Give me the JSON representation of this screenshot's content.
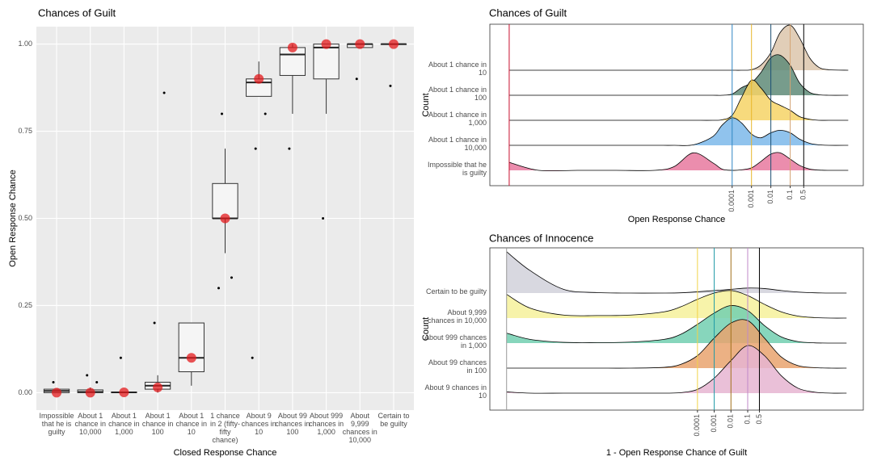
{
  "chart_data": [
    {
      "type": "box",
      "title": "Chances of Guilt",
      "x_label": "Closed Response Chance",
      "y_label": "Open Response Chance",
      "categories": [
        "Impossible that he is guilty",
        "About 1 chance in 10,000",
        "About 1 chance in 1,000",
        "About 1 chance in 100",
        "About 1 chance in 10",
        "1 chance in 2 (fifty-fifty chance)",
        "About 9 chances in 10",
        "About 99 chances in 100",
        "About 999 chances in 1,000",
        "About 9,999 chances in 10,000",
        "Certain to be guilty"
      ],
      "boxes": [
        {
          "min": 0,
          "q1": 0,
          "median": 0.005,
          "q3": 0.01,
          "max": 0.01,
          "outliers": [
            0.03
          ]
        },
        {
          "min": 0,
          "q1": 0,
          "median": 0.002,
          "q3": 0.008,
          "max": 0.015,
          "outliers": [
            0.05,
            0.03
          ]
        },
        {
          "min": 0,
          "q1": 0,
          "median": 0.001,
          "q3": 0.002,
          "max": 0.003,
          "outliers": [
            0.1
          ]
        },
        {
          "min": 0,
          "q1": 0.01,
          "median": 0.02,
          "q3": 0.03,
          "max": 0.05,
          "outliers": [
            0.2,
            0.86
          ]
        },
        {
          "min": 0.02,
          "q1": 0.06,
          "median": 0.1,
          "q3": 0.2,
          "max": 0.2,
          "outliers": []
        },
        {
          "min": 0.4,
          "q1": 0.5,
          "median": 0.5,
          "q3": 0.6,
          "max": 0.7,
          "outliers": [
            0.8,
            0.33,
            0.3
          ]
        },
        {
          "min": 0.85,
          "q1": 0.85,
          "median": 0.89,
          "q3": 0.9,
          "max": 0.95,
          "outliers": [
            0.7,
            0.8,
            0.1
          ]
        },
        {
          "min": 0.8,
          "q1": 0.91,
          "median": 0.97,
          "q3": 0.99,
          "max": 1,
          "outliers": [
            0.7
          ]
        },
        {
          "min": 0.8,
          "q1": 0.9,
          "median": 0.99,
          "q3": 1,
          "max": 1,
          "outliers": [
            0.5
          ]
        },
        {
          "min": 0.99,
          "q1": 0.99,
          "median": 1,
          "q3": 1,
          "max": 1,
          "outliers": [
            0.9
          ]
        },
        {
          "min": 1,
          "q1": 1,
          "median": 1,
          "q3": 1,
          "max": 1,
          "outliers": [
            0.88
          ]
        }
      ],
      "means": [
        0,
        0,
        0.001,
        0.015,
        0.1,
        0.5,
        0.9,
        0.99,
        1,
        1,
        1
      ],
      "mean_color": "#e31a1c",
      "ylim": [
        -0.05,
        1.05
      ],
      "yticks": [
        {
          "value": 0,
          "label": "0.00"
        },
        {
          "value": 0.25,
          "label": "0.25"
        },
        {
          "value": 0.5,
          "label": "0.50"
        },
        {
          "value": 0.75,
          "label": "0.75"
        },
        {
          "value": 1,
          "label": "1.00"
        }
      ],
      "grid": true
    },
    {
      "type": "ridgeline",
      "title": "Chances of Guilt",
      "x_label": "Open Response Chance",
      "y_label": "Count",
      "log_x": true,
      "x": [
        3e-16,
        1e-14,
        1e-12,
        1e-10,
        1e-08,
        1e-07,
        1e-06,
        1e-05,
        3e-05,
        0.0001,
        0.0003,
        0.001,
        0.003,
        0.01,
        0.03,
        0.1,
        0.3,
        1,
        3,
        10,
        100
      ],
      "series": [
        {
          "name": "Impossible that he is guilty",
          "color": "#e8799f",
          "values": [
            0.32,
            0,
            0,
            0,
            0,
            0.15,
            0.7,
            0.3,
            0.05,
            0,
            0.02,
            0.1,
            0.35,
            0.65,
            0.7,
            0.45,
            0.2,
            0.05,
            0.01,
            0,
            0
          ]
        },
        {
          "name": "About 1 chance in 10,000",
          "color": "#7db8ea",
          "values": [
            0,
            0,
            0,
            0,
            0,
            0,
            0.02,
            0.35,
            0.8,
            1.1,
            0.9,
            0.45,
            0.3,
            0.5,
            0.6,
            0.5,
            0.25,
            0.08,
            0.02,
            0,
            0
          ]
        },
        {
          "name": "About 1 chance in 1,000",
          "color": "#f6d466",
          "values": [
            0,
            0,
            0,
            0,
            0,
            0,
            0,
            0,
            0.02,
            0.2,
            0.9,
            1.6,
            1.3,
            0.8,
            0.6,
            0.4,
            0.15,
            0.04,
            0,
            0,
            0
          ]
        },
        {
          "name": "About 1 chance in 100",
          "color": "#5f8b78",
          "values": [
            0,
            0,
            0,
            0,
            0,
            0,
            0,
            0,
            0,
            0.05,
            0.3,
            0.5,
            0.9,
            1.5,
            1.6,
            1.2,
            0.5,
            0.12,
            0.02,
            0,
            0
          ]
        },
        {
          "name": "About 1 chance in 10",
          "color": "#dcc6ab",
          "values": [
            0,
            0,
            0,
            0,
            0,
            0,
            0,
            0,
            0,
            0,
            0,
            0.02,
            0.2,
            0.7,
            1.5,
            1.8,
            1.3,
            0.5,
            0.12,
            0.02,
            0
          ]
        }
      ],
      "vlines": [
        {
          "value": 3e-16,
          "color": "#c8102e"
        },
        {
          "value": 0.0001,
          "color": "#2f86c4"
        },
        {
          "value": 0.001,
          "color": "#e8b62b"
        },
        {
          "value": 0.01,
          "color": "#1b4f72"
        },
        {
          "value": 0.1,
          "color": "#d4a373"
        },
        {
          "value": 0.5,
          "color": "#000000"
        }
      ],
      "xlim": [
        3e-17,
        600
      ],
      "xticks": [
        0.0001,
        0.001,
        0.01,
        0.1,
        0.5
      ]
    },
    {
      "type": "ridgeline",
      "title": "Chances of Innocence",
      "x_label": "1 - Open Response Chance of Guilt",
      "y_label": "Count",
      "log_x": true,
      "x": [
        4e-16,
        1e-14,
        1e-12,
        1e-10,
        1e-08,
        1e-06,
        1e-05,
        0.0001,
        0.001,
        0.01,
        0.1,
        1,
        10,
        100,
        1000,
        10000,
        80000
      ],
      "series": [
        {
          "name": "About 9 chances in 10",
          "color": "#e6b5d1",
          "values": [
            0.05,
            0,
            0,
            0,
            0,
            0,
            0.02,
            0.15,
            0.6,
            1.3,
            1.9,
            1.5,
            0.7,
            0.2,
            0.04,
            0,
            0
          ]
        },
        {
          "name": "About 99 chances in 100",
          "color": "#e9a36f",
          "values": [
            0,
            0,
            0,
            0,
            0,
            0.03,
            0.15,
            0.5,
            1.2,
            1.8,
            1.9,
            1.2,
            0.45,
            0.1,
            0.02,
            0,
            0
          ]
        },
        {
          "name": "About 999 chances in 1,000",
          "color": "#72cfb0",
          "values": [
            0.4,
            0.15,
            0.03,
            0.02,
            0.04,
            0.15,
            0.35,
            0.75,
            1.2,
            1.5,
            1.3,
            0.7,
            0.25,
            0.06,
            0.01,
            0,
            0
          ]
        },
        {
          "name": "About 9,999 chances in 10,000",
          "color": "#f6f19b",
          "values": [
            0.95,
            0.4,
            0.12,
            0.1,
            0.12,
            0.25,
            0.45,
            0.75,
            1.0,
            1.1,
            0.9,
            0.55,
            0.25,
            0.08,
            0.02,
            0,
            0
          ]
        },
        {
          "name": "Certain to be guilty",
          "color": "#d1d1da",
          "values": [
            1.65,
            0.9,
            0.15,
            0.02,
            0,
            0,
            0.01,
            0.05,
            0.1,
            0.15,
            0.2,
            0.18,
            0.1,
            0.04,
            0.01,
            0,
            0
          ]
        }
      ],
      "vlines": [
        {
          "value": 4e-16,
          "color": "#999999"
        },
        {
          "value": 0.0001,
          "color": "#f2d24a"
        },
        {
          "value": 0.001,
          "color": "#1f9aa6"
        },
        {
          "value": 0.01,
          "color": "#a0701a"
        },
        {
          "value": 0.1,
          "color": "#c089c9"
        },
        {
          "value": 0.5,
          "color": "#000000"
        }
      ],
      "xlim": [
        4e-17,
        800000
      ],
      "xticks": [
        0.0001,
        0.001,
        0.01,
        0.1,
        0.5
      ]
    }
  ]
}
